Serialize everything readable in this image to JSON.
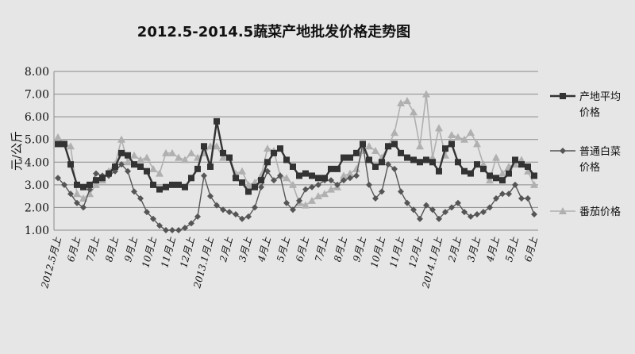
{
  "chart_data": {
    "type": "line",
    "title": "2012.5-2014.5蔬菜产地批发价格走势图",
    "xlabel": "",
    "ylabel": "元/公斤",
    "ylim": [
      1.0,
      8.0
    ],
    "yticks": [
      "1.00",
      "2.00",
      "3.00",
      "4.00",
      "5.00",
      "6.00",
      "7.00",
      "8.00"
    ],
    "grid": true,
    "legend_position": "right",
    "x_tick_labels": [
      "2012.5月上",
      "6月上",
      "7月上",
      "8月上",
      "9月上",
      "10月上",
      "11月上",
      "12月上",
      "2013.1月上",
      "2月上",
      "3月上",
      "4月上",
      "5月上",
      "6月上",
      "7月上",
      "8月上",
      "9月上",
      "10月上",
      "11月上",
      "12月上",
      "2014.1月上",
      "2月上",
      "3月上",
      "4月上",
      "5月上",
      "6月上"
    ],
    "series": [
      {
        "name": "产地平均价格",
        "name_lines": [
          "产地平均",
          "价格"
        ],
        "marker": "square",
        "color": "#333333",
        "values": [
          4.8,
          4.8,
          3.9,
          3.0,
          2.9,
          3.0,
          3.2,
          3.3,
          3.5,
          3.8,
          4.4,
          4.3,
          3.9,
          3.8,
          3.6,
          3.0,
          2.8,
          2.9,
          3.0,
          3.0,
          2.9,
          3.3,
          3.7,
          4.7,
          3.8,
          5.8,
          4.4,
          4.2,
          3.3,
          3.1,
          2.7,
          2.9,
          3.2,
          4.0,
          4.4,
          4.6,
          4.1,
          3.8,
          3.4,
          3.5,
          3.4,
          3.3,
          3.3,
          3.7,
          3.7,
          4.2,
          4.2,
          4.4,
          4.8,
          4.1,
          3.8,
          4.0,
          4.7,
          4.8,
          4.4,
          4.2,
          4.1,
          4.0,
          4.1,
          4.0,
          3.6,
          4.6,
          4.8,
          4.0,
          3.6,
          3.5,
          3.9,
          3.7,
          3.4,
          3.3,
          3.2,
          3.5,
          4.1,
          3.9,
          3.8,
          3.4
        ]
      },
      {
        "name": "普通白菜价格",
        "name_lines": [
          "普通白菜",
          "价格"
        ],
        "marker": "diamond",
        "color": "#555555",
        "values": [
          3.3,
          3.0,
          2.6,
          2.2,
          2.0,
          2.8,
          3.5,
          3.4,
          3.4,
          3.6,
          3.9,
          3.6,
          2.7,
          2.4,
          1.8,
          1.5,
          1.2,
          1.0,
          1.0,
          1.0,
          1.1,
          1.3,
          1.6,
          3.4,
          2.5,
          2.1,
          1.9,
          1.8,
          1.7,
          1.5,
          1.6,
          2.0,
          2.9,
          3.6,
          3.2,
          3.4,
          2.2,
          1.9,
          2.3,
          2.8,
          2.9,
          3.0,
          3.2,
          3.2,
          3.0,
          3.2,
          3.3,
          3.4,
          4.8,
          3.0,
          2.4,
          2.7,
          3.9,
          3.7,
          2.7,
          2.2,
          1.9,
          1.5,
          2.1,
          1.9,
          1.5,
          1.8,
          2.0,
          2.2,
          1.8,
          1.6,
          1.7,
          1.8,
          2.0,
          2.4,
          2.6,
          2.6,
          3.0,
          2.4,
          2.4,
          1.7
        ]
      },
      {
        "name": "番茄价格",
        "name_lines": [
          "番茄价格"
        ],
        "marker": "triangle",
        "color": "#b0b0b0",
        "values": [
          5.1,
          4.8,
          4.7,
          2.6,
          2.4,
          2.6,
          3.0,
          3.2,
          3.6,
          3.9,
          5.0,
          4.0,
          4.3,
          4.1,
          4.2,
          3.7,
          3.5,
          4.4,
          4.4,
          4.2,
          4.1,
          4.4,
          4.2,
          4.4,
          4.7,
          4.7,
          4.2,
          4.2,
          3.5,
          3.6,
          3.0,
          3.1,
          3.4,
          4.6,
          4.5,
          3.4,
          3.3,
          3.0,
          2.2,
          2.1,
          2.3,
          2.5,
          2.6,
          2.8,
          2.9,
          3.4,
          3.5,
          3.7,
          4.5,
          4.7,
          4.5,
          4.2,
          4.7,
          5.3,
          6.6,
          6.7,
          6.2,
          4.7,
          7.0,
          4.2,
          5.5,
          4.3,
          5.2,
          5.1,
          5.0,
          5.3,
          4.8,
          3.9,
          3.2,
          4.2,
          3.5,
          3.8,
          3.9,
          4.1,
          3.6,
          3.0
        ]
      }
    ]
  }
}
